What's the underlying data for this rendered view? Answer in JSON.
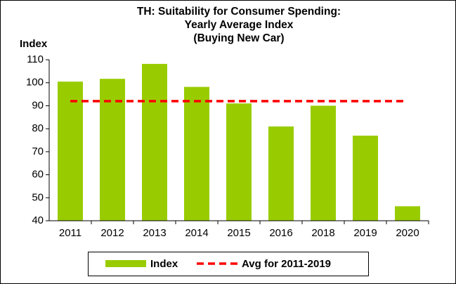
{
  "chart_data": {
    "type": "bar",
    "title": [
      "TH: Suitability for Consumer Spending:",
      "Yearly Average Index",
      "(Buying New Car)"
    ],
    "y_axis_label": "Index",
    "categories": [
      "2011",
      "2012",
      "2013",
      "2014",
      "2015",
      "2016",
      "2018",
      "2019",
      "2020"
    ],
    "series": [
      {
        "name": "Index",
        "type": "bar",
        "color": "#99cc00",
        "values": [
          100.5,
          101.7,
          108.2,
          98.2,
          91,
          81,
          90,
          77,
          46.3
        ]
      },
      {
        "name": "Avg for 2011-2019",
        "type": "line",
        "color": "#ff0000",
        "values": [
          92,
          92,
          92,
          92,
          92,
          92,
          92,
          92,
          92
        ]
      }
    ],
    "ylim": [
      40,
      110
    ],
    "yticks": [
      40,
      50,
      60,
      70,
      80,
      90,
      100,
      110
    ],
    "grid": false
  }
}
